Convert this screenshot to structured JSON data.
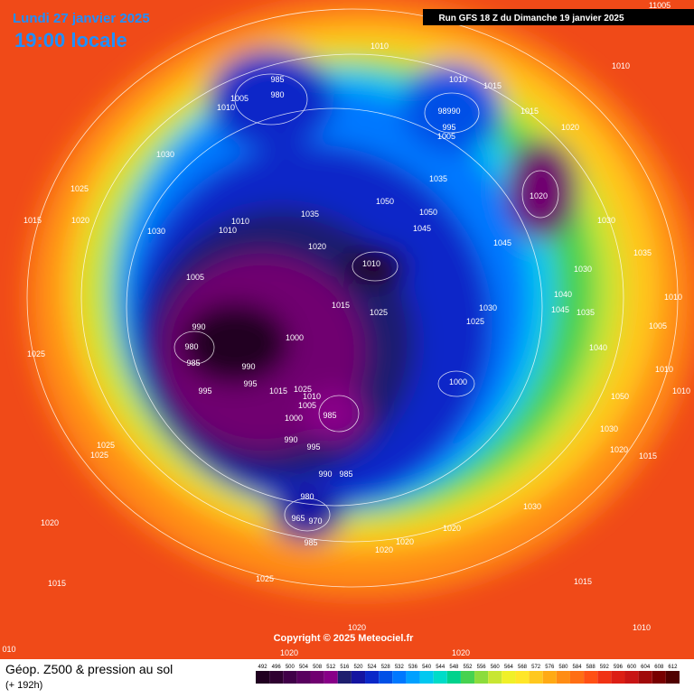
{
  "header": {
    "date": "Lundi 27 janvier 2025",
    "time": "19:00 locale",
    "run": "Run GFS 18 Z du Dimanche 19 janvier 2025"
  },
  "copyright": "Copyright © 2025 Meteociel.fr",
  "legend": {
    "title": "Géop. Z500 & pression au sol",
    "subtitle": "(+ 192h)"
  },
  "scale": {
    "values": [
      492,
      496,
      500,
      504,
      508,
      512,
      516,
      520,
      524,
      528,
      532,
      536,
      540,
      544,
      548,
      552,
      556,
      560,
      564,
      568,
      572,
      576,
      580,
      584,
      588,
      592,
      596,
      600,
      604,
      608,
      612
    ],
    "colors": [
      "#200020",
      "#2e0030",
      "#400048",
      "#58005e",
      "#700070",
      "#880088",
      "#1e1e6e",
      "#1414a0",
      "#0a28c8",
      "#0050e6",
      "#0078ff",
      "#00a0ff",
      "#00c8f0",
      "#00dcc8",
      "#00d28c",
      "#46d250",
      "#8cdc3c",
      "#c8e632",
      "#f0f028",
      "#ffe628",
      "#ffc81e",
      "#ffaa14",
      "#ff8c14",
      "#ff6e14",
      "#ff5014",
      "#f03214",
      "#dc1e14",
      "#c81414",
      "#a00a0a",
      "#780000",
      "#500000"
    ]
  },
  "isobar_labels": [
    "1010",
    "985",
    "980",
    "1005",
    "1010",
    "1010",
    "1015",
    "98990",
    "995",
    "1005",
    "1015",
    "1020",
    "1010",
    "1030",
    "1025",
    "1020",
    "1015",
    "1030",
    "1010",
    "1010",
    "1035",
    "1035",
    "1050",
    "1050",
    "1045",
    "1020",
    "1030",
    "1045",
    "1020",
    "1010",
    "1030",
    "1035",
    "1005",
    "1015",
    "1025",
    "1040",
    "1045",
    "1030",
    "1025",
    "1035",
    "990",
    "980",
    "985",
    "1000",
    "990",
    "995",
    "995",
    "1015",
    "1025",
    "1010",
    "1005",
    "985",
    "1000",
    "1000",
    "1040",
    "1025",
    "1010",
    "1010",
    "1050",
    "1030",
    "1020",
    "1015",
    "1025",
    "1025",
    "995",
    "990",
    "990",
    "985",
    "980",
    "965",
    "970",
    "985",
    "1030",
    "1020",
    "1020",
    "1020",
    "1020",
    "1015",
    "1025",
    "1015",
    "1010",
    "1020",
    "1020",
    "1020",
    "010",
    "11005",
    "1010",
    "1005"
  ]
}
